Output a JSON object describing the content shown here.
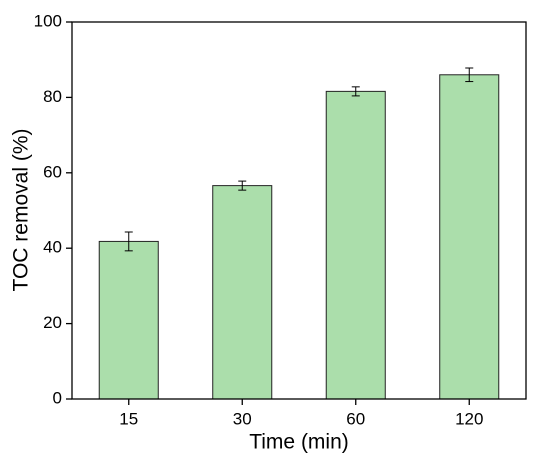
{
  "chart_data": {
    "type": "bar",
    "x_label": "Time (min)",
    "y_label": "TOC removal (%)",
    "categories": [
      "15",
      "30",
      "60",
      "120"
    ],
    "values": [
      41.8,
      56.6,
      81.6,
      86.0
    ],
    "errors": [
      2.5,
      1.2,
      1.2,
      1.8
    ],
    "color": "#abdeab",
    "edge_color": "#222222",
    "ylim": [
      0,
      100
    ],
    "yticks": [
      0,
      20,
      40,
      60,
      80,
      100
    ],
    "grid": false
  }
}
